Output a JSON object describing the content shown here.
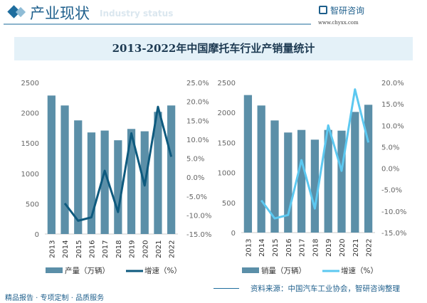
{
  "header": {
    "title": "产业现状",
    "ghost": "Industry status",
    "brand": "智研咨询",
    "url": "www.chyxx.com"
  },
  "title": "2013-2022年中国摩托车行业产销量统计",
  "footer": {
    "slogan": "精品报告 · 专项定制 · 品质服务",
    "source": "资料来源：中国汽车工业协会，智研咨询整理"
  },
  "colors": {
    "bar": "#5b8fa8",
    "line_left": "#0e5a7e",
    "line_right": "#5cc8f0"
  },
  "chart_data": [
    {
      "type": "bar+line",
      "categories": [
        "2013",
        "2014",
        "2015",
        "2016",
        "2017",
        "2018",
        "2019",
        "2020",
        "2021",
        "2022"
      ],
      "series": [
        {
          "name": "产量（万辆）",
          "type": "bar",
          "axis": "left",
          "values": [
            2285,
            2121,
            1875,
            1676,
            1707,
            1547,
            1734,
            1695,
            2016,
            2121
          ]
        },
        {
          "name": "增速（%）",
          "type": "line",
          "axis": "right",
          "values": [
            null,
            -6.9,
            -11.5,
            -10.6,
            1.7,
            -9.2,
            11.6,
            -2.2,
            18.6,
            5.4
          ]
        }
      ],
      "ylim": [
        0,
        2500
      ],
      "yticks": [
        "0",
        "500",
        "1000",
        "1500",
        "2000",
        "2500"
      ],
      "y2lim": [
        -15,
        25
      ],
      "y2ticks": [
        "-15.0%",
        "-10.0%",
        "-5.0%",
        "0.0%",
        "5.0%",
        "10.0%",
        "15.0%",
        "20.0%",
        "25.0%"
      ],
      "legend": "bottom"
    },
    {
      "type": "bar+line",
      "categories": [
        "2013",
        "2014",
        "2015",
        "2016",
        "2017",
        "2018",
        "2019",
        "2020",
        "2021",
        "2022"
      ],
      "series": [
        {
          "name": "销量（万辆）",
          "type": "bar",
          "axis": "left",
          "values": [
            2291,
            2117,
            1868,
            1667,
            1710,
            1548,
            1710,
            1698,
            2010,
            2129
          ]
        },
        {
          "name": "增速（%）",
          "type": "line",
          "axis": "right",
          "values": [
            null,
            -7.5,
            -11.7,
            -10.9,
            1.9,
            -9.4,
            10.0,
            -0.6,
            18.4,
            6.0
          ]
        }
      ],
      "ylim": [
        0,
        2500
      ],
      "yticks": [
        "0",
        "500",
        "1000",
        "1500",
        "2000",
        "2500"
      ],
      "y2lim": [
        -15,
        20
      ],
      "y2ticks": [
        "-15.0%",
        "-10.0%",
        "-5.0%",
        "0.0%",
        "5.0%",
        "10.0%",
        "15.0%",
        "20.0%"
      ],
      "legend": "bottom"
    }
  ]
}
